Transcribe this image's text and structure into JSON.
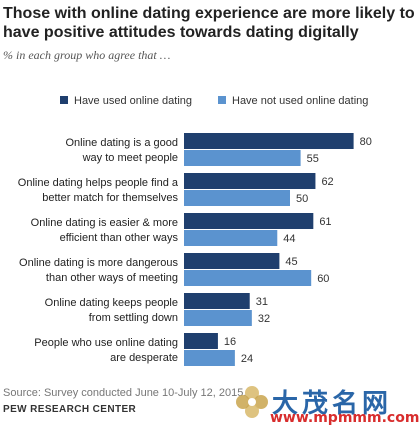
{
  "chart_data": {
    "type": "bar",
    "orientation": "horizontal",
    "title": "Those with online dating experience are more likely to have positive attitudes towards dating digitally",
    "subtitle": "% in each group who agree that …",
    "categories": [
      [
        "Online dating is a good",
        "way to meet people"
      ],
      [
        "Online dating helps people find a",
        "better match for themselves"
      ],
      [
        "Online dating is easier & more",
        "efficient than other ways"
      ],
      [
        "Online dating is more dangerous",
        "than other ways of meeting"
      ],
      [
        "Online dating keeps people",
        "from settling down"
      ],
      [
        "People who use online dating",
        "are desperate"
      ]
    ],
    "series": [
      {
        "name": "Have used online dating",
        "color": "#1f3f6e",
        "values": [
          80,
          62,
          61,
          45,
          31,
          16
        ]
      },
      {
        "name": "Have not used online dating",
        "color": "#5b93cf",
        "values": [
          55,
          50,
          44,
          60,
          32,
          24
        ]
      }
    ],
    "xlim": [
      0,
      100
    ],
    "grid": false,
    "legend_position": "top",
    "data_labels": true
  },
  "footer": {
    "source": "Source: Survey conducted June 10-July 12, 2015.",
    "org": "PEW RESEARCH CENTER"
  },
  "watermark": {
    "text": "大茂名网",
    "url": "www.mpmmm.com"
  }
}
